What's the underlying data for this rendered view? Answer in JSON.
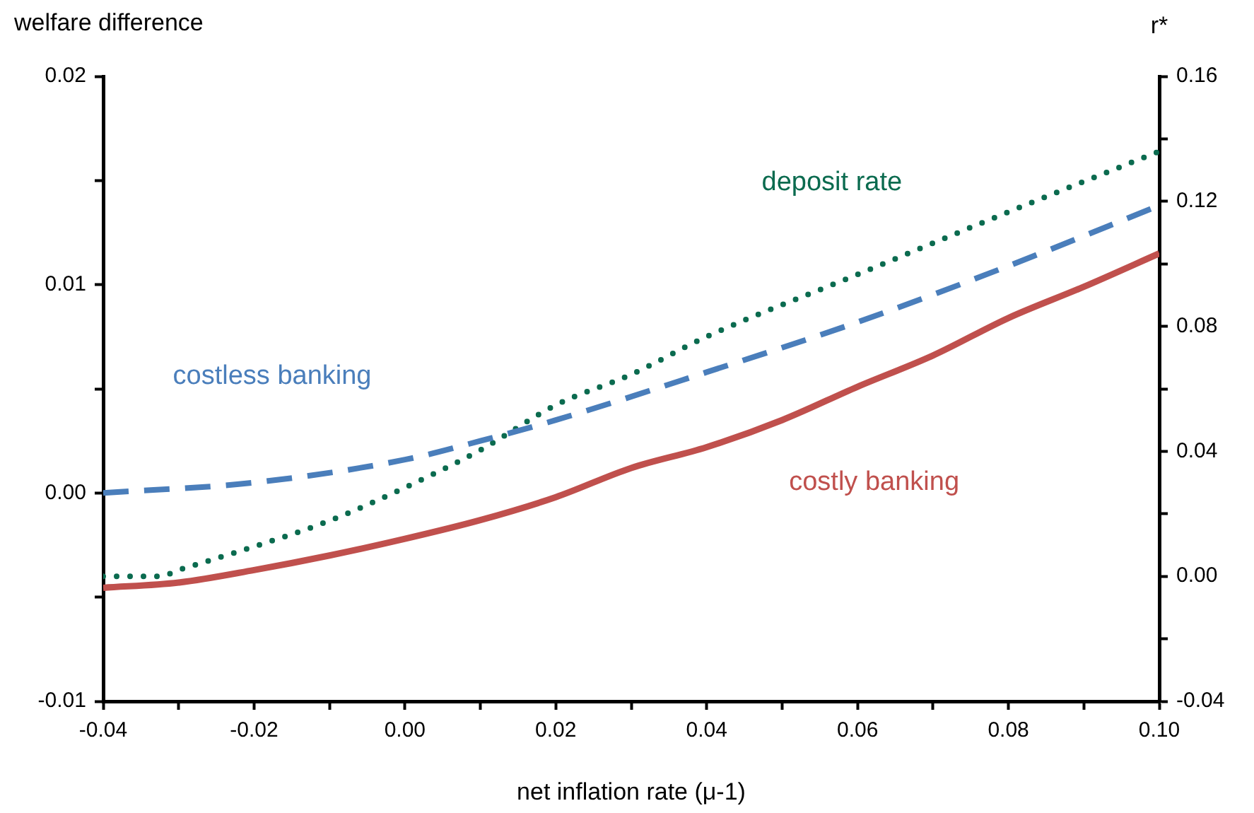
{
  "chart_data": {
    "type": "line",
    "xlabel": "net inflation rate (μ-1)",
    "ylabel": "welfare difference",
    "y2label": "r*",
    "xlim": [
      -0.04,
      0.1
    ],
    "xticks": [
      -0.04,
      {
        "value": -0.03,
        "label": null
      },
      -0.02,
      {
        "value": -0.01,
        "label": null
      },
      {
        "value": 0,
        "label": "0.00"
      },
      {
        "value": 0.01,
        "label": null
      },
      0.02,
      {
        "value": 0.03,
        "label": null
      },
      0.04,
      {
        "value": 0.05,
        "label": null
      },
      0.06,
      {
        "value": 0.07,
        "label": null
      },
      0.08,
      {
        "value": 0.09,
        "label": null
      },
      {
        "value": 0.1,
        "label": "0.10"
      }
    ],
    "ylim": [
      -0.01,
      0.02
    ],
    "yticks": [
      -0.01,
      {
        "value": -0.005,
        "label": null
      },
      {
        "value": 0,
        "label": "0.00"
      },
      {
        "value": 0.005,
        "label": null
      },
      0.01,
      {
        "value": 0.015,
        "label": null
      },
      0.02
    ],
    "y2lim": [
      -0.04,
      0.16
    ],
    "y2ticks": [
      -0.04,
      {
        "value": -0.02,
        "label": null
      },
      {
        "value": 0,
        "label": "0.00"
      },
      {
        "value": 0.02,
        "label": null
      },
      0.04,
      {
        "value": 0.06,
        "label": null
      },
      0.08,
      {
        "value": 0.1,
        "label": null
      },
      0.12,
      {
        "value": 0.14,
        "label": null
      },
      0.16
    ],
    "grid": false,
    "legend": false,
    "marker": "none",
    "series": [
      {
        "name": "costless banking",
        "color": "#4a7ebb",
        "line_style": "dashed",
        "x": [
          -0.04,
          -0.02,
          0,
          0.01,
          0.02,
          0.04,
          0.06,
          0.08,
          0.1
        ],
        "values": [
          0,
          0.0005,
          0.0016,
          0.0025,
          0.0035,
          0.0058,
          0.0082,
          0.0109,
          0.0138
        ]
      },
      {
        "name": "deposit rate",
        "color": "#0b6b4f",
        "line_style": "dotted",
        "axis": "y2",
        "x": [
          -0.04,
          -0.0325,
          -0.03,
          -0.02,
          -0.01,
          0,
          0.01,
          0.02,
          0.03,
          0.04,
          0.06,
          0.08,
          0.1
        ],
        "values": [
          0,
          0,
          0.002,
          0.0095,
          0.0178,
          0.0284,
          0.0404,
          0.0548,
          0.0646,
          0.0767,
          0.0966,
          0.1166,
          0.136
        ]
      },
      {
        "name": "costly banking",
        "color": "#c0504d",
        "line_style": "solid",
        "x": [
          -0.04,
          -0.03,
          -0.02,
          -0.01,
          0,
          0.01,
          0.02,
          0.03,
          0.04,
          0.05,
          0.06,
          0.07,
          0.08,
          0.09,
          0.1
        ],
        "values": [
          -0.00455,
          -0.0043,
          -0.0037,
          -0.003,
          -0.0022,
          -0.0013,
          -0.0002,
          0.0012,
          0.0022,
          0.0035,
          0.0051,
          0.0066,
          0.0084,
          0.0099,
          0.0115
        ]
      }
    ]
  }
}
